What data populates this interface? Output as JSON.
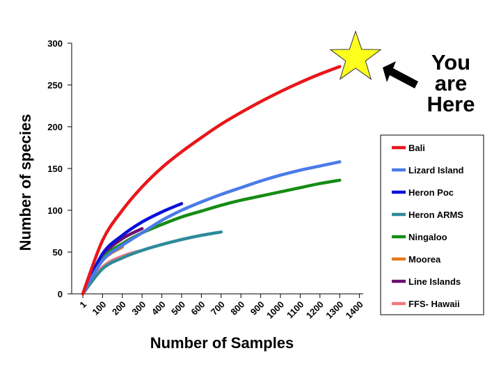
{
  "chart_data": {
    "type": "line",
    "title": "",
    "xlabel": "Number of Samples",
    "ylabel": "Number of species",
    "x_tick_labels": [
      "1",
      "100",
      "200",
      "300",
      "400",
      "500",
      "600",
      "700",
      "800",
      "900",
      "1000",
      "1100",
      "1200",
      "1300",
      "1400"
    ],
    "y_ticks": [
      0,
      50,
      100,
      150,
      200,
      250,
      300
    ],
    "ylim": [
      0,
      300
    ],
    "grid": false,
    "legend_position": "right",
    "series": [
      {
        "name": "Bali",
        "color": "#e8161b",
        "x": [
          0,
          1,
          2,
          3,
          4,
          5,
          6,
          7,
          8,
          9,
          10,
          11,
          12,
          13
        ],
        "y": [
          0,
          64,
          100,
          128,
          151,
          170,
          187,
          203,
          217,
          230,
          242,
          253,
          263,
          272
        ]
      },
      {
        "name": "Lizard Island",
        "color": "#4a7be8",
        "x": [
          0,
          1,
          2,
          3,
          4,
          5,
          6,
          7,
          8,
          9,
          10,
          11,
          12,
          13
        ],
        "y": [
          0,
          40,
          58,
          73,
          88,
          100,
          110,
          119,
          127,
          135,
          142,
          148,
          153,
          158
        ]
      },
      {
        "name": "Heron Poc",
        "color": "#0a10d8",
        "x": [
          0,
          1,
          2,
          3,
          4,
          5
        ],
        "y": [
          0,
          48,
          70,
          86,
          98,
          108
        ]
      },
      {
        "name": "Heron ARMS",
        "color": "#2f8a9a",
        "x": [
          0,
          1,
          2,
          3,
          4,
          5,
          6,
          7
        ],
        "y": [
          0,
          30,
          43,
          52,
          59,
          65,
          70,
          74
        ]
      },
      {
        "name": "Ningaloo",
        "color": "#158c15",
        "x": [
          0,
          1,
          2,
          3,
          4,
          5,
          6,
          7,
          8,
          9,
          10,
          11,
          12,
          13
        ],
        "y": [
          0,
          42,
          60,
          73,
          83,
          92,
          99,
          106,
          112,
          117,
          122,
          127,
          132,
          136
        ]
      },
      {
        "name": "Moorea",
        "color": "#e57a1e",
        "x": [
          0,
          1,
          2
        ],
        "y": [
          0,
          40,
          56
        ]
      },
      {
        "name": "Line Islands",
        "color": "#6a1070",
        "x": [
          0,
          1,
          2,
          3
        ],
        "y": [
          0,
          45,
          66,
          78
        ]
      },
      {
        "name": "FFS- Hawaii",
        "color": "#f07a80",
        "x": [
          0,
          1,
          2,
          3
        ],
        "y": [
          0,
          32,
          45,
          52
        ]
      }
    ],
    "annotation": {
      "lines": [
        "You",
        "are",
        "Here"
      ]
    }
  }
}
